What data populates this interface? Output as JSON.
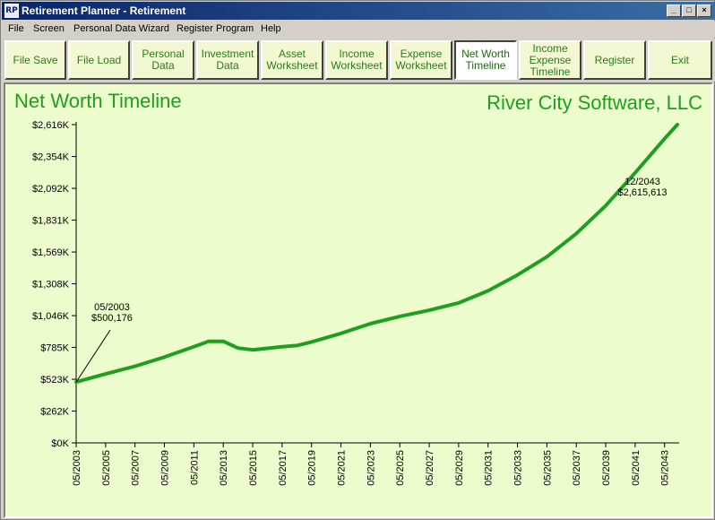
{
  "window": {
    "icon_label": "RP",
    "title": "Retirement Planner - Retirement",
    "minimize_glyph": "_",
    "maximize_glyph": "□",
    "close_glyph": "×"
  },
  "menu": [
    "File",
    "Screen",
    "Personal Data Wizard",
    "Register Program",
    "Help"
  ],
  "toolbar": [
    {
      "label": "File Save"
    },
    {
      "label": "File Load"
    },
    {
      "label": "Personal\nData"
    },
    {
      "label": "Investment\nData"
    },
    {
      "label": "Asset\nWorksheet"
    },
    {
      "label": "Income\nWorksheet"
    },
    {
      "label": "Expense\nWorksheet"
    },
    {
      "label": "Net Worth\nTimeline"
    },
    {
      "label": "Income\nExpense\nTimeline"
    },
    {
      "label": "Register"
    },
    {
      "label": "Exit"
    }
  ],
  "colors": {
    "line": "#1ea01e",
    "panel_bg": "#ecfccc",
    "button_bg": "#f2f9d2",
    "button_text": "#2a7a1a"
  },
  "chart_data": {
    "type": "line",
    "title": "Net Worth Timeline",
    "company": "River City Software, LLC",
    "xlabel": "",
    "ylabel": "",
    "y_ticks": [
      0,
      262,
      523,
      785,
      1046,
      1308,
      1569,
      1831,
      2092,
      2354,
      2616
    ],
    "y_tick_labels": [
      "$0K",
      "$262K",
      "$523K",
      "$785K",
      "$1,046K",
      "$1,308K",
      "$1,569K",
      "$1,831K",
      "$2,092K",
      "$2,354K",
      "$2,616K"
    ],
    "ylim": [
      0,
      2616
    ],
    "xlim": [
      2003.33,
      2044.2
    ],
    "x_ticks": [
      2003.33,
      2005.33,
      2007.33,
      2009.33,
      2011.33,
      2013.33,
      2015.33,
      2017.33,
      2019.33,
      2021.33,
      2023.33,
      2025.33,
      2027.33,
      2029.33,
      2031.33,
      2033.33,
      2035.33,
      2037.33,
      2039.33,
      2041.33,
      2043.33
    ],
    "x_tick_labels": [
      "05/2003",
      "05/2005",
      "05/2007",
      "05/2009",
      "05/2011",
      "05/2013",
      "05/2015",
      "05/2017",
      "05/2019",
      "05/2021",
      "05/2023",
      "05/2025",
      "05/2027",
      "05/2029",
      "05/2031",
      "05/2033",
      "05/2035",
      "05/2037",
      "05/2039",
      "05/2041",
      "05/2043"
    ],
    "series": [
      {
        "name": "Net Worth",
        "x": [
          2003.33,
          2005.33,
          2007.33,
          2009.33,
          2011.33,
          2012.33,
          2013.33,
          2014.33,
          2015.33,
          2017.33,
          2018.33,
          2019.33,
          2021.33,
          2023.33,
          2025.33,
          2027.33,
          2029.33,
          2031.33,
          2033.33,
          2035.33,
          2037.33,
          2039.33,
          2041.33,
          2043.33,
          2044.2
        ],
        "values": [
          500,
          567,
          630,
          705,
          790,
          835,
          835,
          780,
          765,
          790,
          800,
          830,
          900,
          980,
          1040,
          1090,
          1150,
          1250,
          1380,
          1530,
          1720,
          1950,
          2220,
          2500,
          2616
        ]
      }
    ],
    "annotations": [
      {
        "date": "05/2003",
        "value_text": "$500,176",
        "x": 2003.33,
        "y": 500
      },
      {
        "date": "12/2043",
        "value_text": "$2,615,613",
        "x": 2044.2,
        "y": 2616
      }
    ]
  }
}
